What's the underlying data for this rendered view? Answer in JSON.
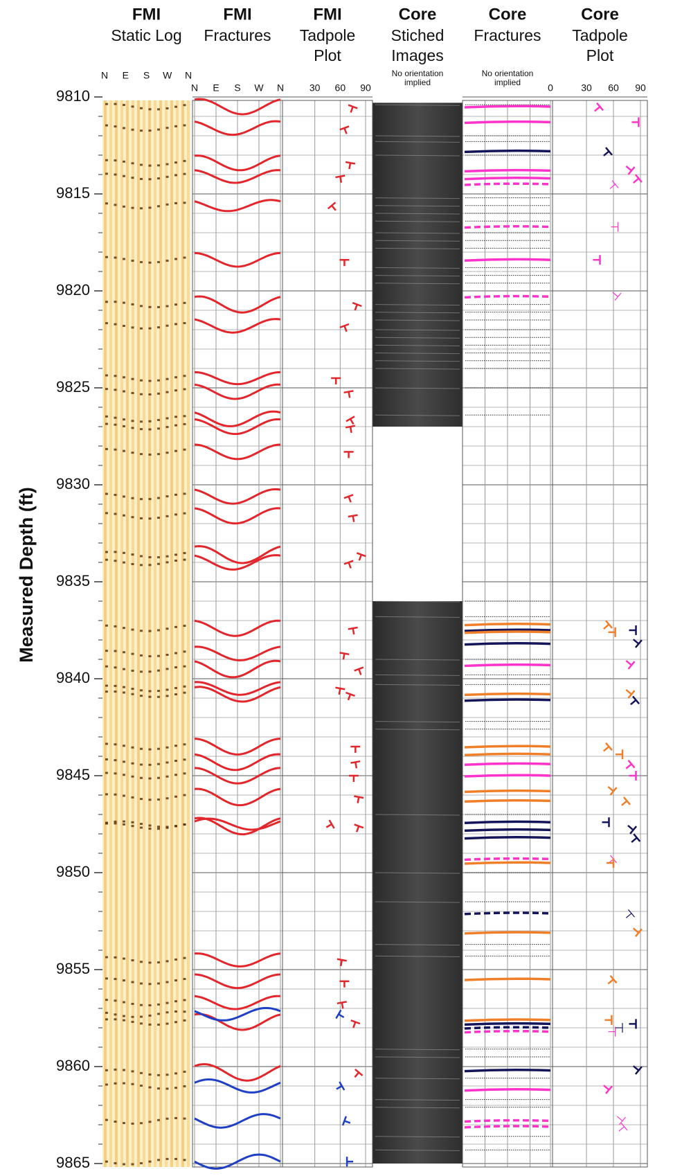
{
  "chart_data": {
    "type": "well-log",
    "y_label": "Measured Depth (ft)",
    "ylim": [
      9810,
      9865
    ],
    "yticks": [
      9810,
      9815,
      9820,
      9825,
      9830,
      9835,
      9840,
      9845,
      9850,
      9855,
      9860,
      9865
    ],
    "minor_yticks": [
      9810,
      9811,
      9812,
      9813,
      9814,
      9815,
      9816,
      9817,
      9818,
      9819,
      9820,
      9821,
      9822,
      9823,
      9824,
      9825,
      9826,
      9827,
      9828,
      9829,
      9830,
      9831,
      9832,
      9833,
      9834,
      9835,
      9836,
      9837,
      9838,
      9839,
      9840,
      9841,
      9842,
      9843,
      9844,
      9845,
      9846,
      9847,
      9848,
      9849,
      9850,
      9851,
      9852,
      9853,
      9854,
      9855,
      9856,
      9857,
      9858,
      9859,
      9860,
      9861,
      9862,
      9863,
      9864,
      9865
    ],
    "tracks": [
      {
        "title": "FMI",
        "subtitle": [
          "Static Log"
        ],
        "xlim": [
          0,
          360
        ],
        "xticks": [
          {
            "value": 0,
            "label": "N"
          },
          {
            "value": 90,
            "label": "E"
          },
          {
            "value": 180,
            "label": "S"
          },
          {
            "value": 270,
            "label": "W"
          },
          {
            "value": 360,
            "label": "N"
          }
        ]
      },
      {
        "title": "FMI",
        "subtitle": [
          "Fractures"
        ],
        "xlim": [
          0,
          360
        ],
        "xticks": [
          {
            "value": 0,
            "label": "N"
          },
          {
            "value": 90,
            "label": "E"
          },
          {
            "value": 180,
            "label": "S"
          },
          {
            "value": 270,
            "label": "W"
          },
          {
            "value": 360,
            "label": "N"
          }
        ]
      },
      {
        "title": "FMI",
        "subtitle": [
          "Tadpole",
          "Plot"
        ],
        "xlim": [
          0,
          90
        ],
        "xticks": [
          30,
          60,
          90
        ]
      },
      {
        "title": "Core",
        "subtitle": [
          "Stiched",
          "Images"
        ],
        "note": [
          "No orientation",
          "implied"
        ],
        "core_intervals": [
          [
            9810.3,
            9827.0
          ],
          [
            9836.0,
            9865
          ]
        ]
      },
      {
        "title": "Core",
        "subtitle": [
          "Fractures"
        ],
        "note": [
          "No orientation",
          "implied"
        ],
        "xticks": [
          0
        ]
      },
      {
        "title": "Core",
        "subtitle": [
          "Tadpole",
          "Plot"
        ],
        "xlim": [
          0,
          90
        ],
        "xticks": [
          30,
          60,
          90
        ]
      }
    ],
    "fmi_fractures": [
      {
        "color": "#e3262b",
        "depth": [
          9810.5,
          9811.6,
          9813.4,
          9814.1,
          9815.6,
          9818.4,
          9820.7,
          9821.8,
          9824.5,
          9825.2,
          9826.6,
          9827.0,
          9828.3,
          9830.6,
          9831.6,
          9833.6,
          9834.0,
          9837.4,
          9838.7,
          9839.5,
          9840.5,
          9840.8,
          9843.5,
          9844.3,
          9845.0,
          9846.1,
          9847.5,
          9847.6,
          9854.5,
          9855.6,
          9856.7,
          9857.7,
          9860.3
        ],
        "dip": [
          75,
          65,
          72,
          60,
          50,
          65,
          80,
          65,
          55,
          70,
          72,
          72,
          70,
          70,
          75,
          85,
          70,
          75,
          65,
          82,
          60,
          72,
          78,
          78,
          76,
          82,
          50,
          82,
          62,
          65,
          62,
          78,
          82
        ],
        "azimuth": [
          200,
          160,
          190,
          170,
          140,
          180,
          200,
          160,
          180,
          170,
          150,
          170,
          180,
          160,
          170,
          200,
          160,
          170,
          190,
          160,
          190,
          200,
          180,
          170,
          180,
          190,
          240,
          200,
          190,
          180,
          170,
          200,
          220
        ]
      },
      {
        "color": "#1f3fc4",
        "depth": [
          9857.3,
          9861.0,
          9862.8,
          9864.9
        ],
        "dip": [
          58,
          62,
          65,
          68
        ],
        "azimuth": [
          120,
          240,
          110,
          90
        ]
      }
    ],
    "core_fractures": [
      {
        "color": "#ff33cc",
        "style": "solid",
        "depth": [
          9810.5,
          9811.3,
          9813.8,
          9814.2,
          9818.4,
          9839.3,
          9844.4,
          9845.0,
          9861.2
        ],
        "dip": [
          45,
          88,
          80,
          88,
          45,
          80,
          80,
          85,
          55
        ]
      },
      {
        "color": "#ff33cc",
        "style": "dashed",
        "depth": [
          9814.5,
          9816.7,
          9820.3,
          9849.3,
          9858.2,
          9862.8,
          9863.1
        ],
        "dip": [
          62,
          65,
          65,
          60,
          62,
          70,
          72
        ]
      },
      {
        "color": "#14145a",
        "style": "solid",
        "depth": [
          9812.8,
          9837.5,
          9838.2,
          9841.1,
          9847.4,
          9847.8,
          9848.2,
          9857.8,
          9860.2
        ],
        "dip": [
          55,
          85,
          88,
          85,
          55,
          82,
          86,
          85,
          88
        ]
      },
      {
        "color": "#14145a",
        "style": "dashed",
        "depth": [
          9852.1,
          9858.0
        ],
        "dip": [
          80,
          70
        ]
      },
      {
        "color": "#f07f2a",
        "style": "solid",
        "depth": [
          9837.2,
          9837.6,
          9840.8,
          9843.5,
          9843.9,
          9845.8,
          9846.3,
          9849.5,
          9853.1,
          9855.5,
          9857.6
        ],
        "dip": [
          55,
          62,
          80,
          55,
          70,
          60,
          75,
          60,
          88,
          60,
          58
        ]
      }
    ],
    "core_features": [
      9810.4,
      9812.0,
      9812.3,
      9813.0,
      9815.2,
      9815.6,
      9816.0,
      9816.4,
      9817.0,
      9817.4,
      9817.8,
      9818.8,
      9819.2,
      9819.6,
      9820.7,
      9821.1,
      9821.5,
      9822.0,
      9822.4,
      9822.8,
      9823.2,
      9823.6,
      9824.0,
      9825.0,
      9826.4,
      9836.0,
      9836.8,
      9839.0,
      9839.8,
      9840.3,
      9842.2,
      9842.6,
      9847.0,
      9850.0,
      9851.5,
      9853.7,
      9854.3,
      9859.1,
      9859.5,
      9860.6,
      9861.7,
      9862.1,
      9863.6,
      9864.3
    ]
  }
}
